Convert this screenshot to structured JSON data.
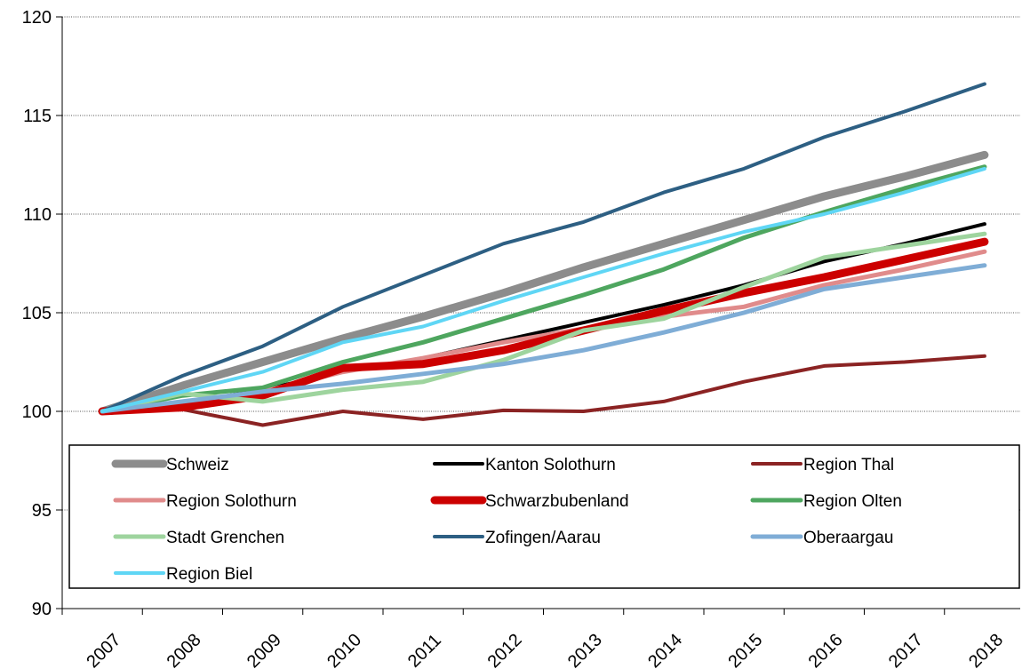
{
  "chart_data": {
    "type": "line",
    "title": "",
    "xlabel": "",
    "ylabel": "",
    "x": [
      "2007",
      "2008",
      "2009",
      "2010",
      "2011",
      "2012",
      "2013",
      "2014",
      "2015",
      "2016",
      "2017",
      "2018"
    ],
    "ylim": [
      90,
      120
    ],
    "yticks": [
      90,
      95,
      100,
      105,
      110,
      115,
      120
    ],
    "grid": "horizontal",
    "legend_position": "bottom-inside",
    "series": [
      {
        "name": "Schweiz",
        "color": "#8c8c8c",
        "width": 9,
        "values": [
          100,
          101.3,
          102.5,
          103.7,
          104.8,
          106,
          107.3,
          108.5,
          109.7,
          110.9,
          111.9,
          113
        ]
      },
      {
        "name": "Kanton Solothurn",
        "color": "#000000",
        "width": 4,
        "values": [
          100,
          100.4,
          101.1,
          102,
          102.7,
          103.6,
          104.5,
          105.4,
          106.4,
          107.6,
          108.5,
          109.5
        ]
      },
      {
        "name": "Region Thal",
        "color": "#8b2323",
        "width": 4,
        "values": [
          100,
          100.1,
          99.3,
          100,
          99.6,
          100.05,
          100,
          100.5,
          101.5,
          102.3,
          102.5,
          102.8
        ]
      },
      {
        "name": "Region Solothurn",
        "color": "#e08b8b",
        "width": 5,
        "values": [
          100,
          100.4,
          101,
          102,
          102.7,
          103.5,
          104.2,
          104.8,
          105.3,
          106.4,
          107.2,
          108.1
        ]
      },
      {
        "name": "Schwarzbubenland",
        "color": "#cc0000",
        "width": 9,
        "values": [
          100,
          100.2,
          100.8,
          102.2,
          102.4,
          103.1,
          104.1,
          105.1,
          106,
          106.8,
          107.7,
          108.6
        ]
      },
      {
        "name": "Region Olten",
        "color": "#4ea65f",
        "width": 5,
        "values": [
          100,
          100.8,
          101.2,
          102.5,
          103.5,
          104.7,
          105.9,
          107.2,
          108.8,
          110.1,
          111.3,
          112.4
        ]
      },
      {
        "name": "Stadt Grenchen",
        "color": "#9ed49e",
        "width": 5,
        "values": [
          100,
          100.9,
          100.5,
          101.1,
          101.5,
          102.6,
          104.1,
          104.7,
          106.3,
          107.8,
          108.4,
          109
        ]
      },
      {
        "name": "Zofingen/Aarau",
        "color": "#2d5f83",
        "width": 4,
        "values": [
          100,
          101.8,
          103.3,
          105.3,
          106.9,
          108.5,
          109.6,
          111.1,
          112.3,
          113.9,
          115.2,
          116.6
        ]
      },
      {
        "name": "Oberaargau",
        "color": "#7fadd6",
        "width": 5,
        "values": [
          100,
          100.5,
          101,
          101.4,
          101.9,
          102.4,
          103.1,
          104,
          105,
          106.2,
          106.8,
          107.4
        ]
      },
      {
        "name": "Region Biel",
        "color": "#5fd6f5",
        "width": 4,
        "values": [
          100,
          101,
          102,
          103.5,
          104.3,
          105.6,
          106.8,
          108,
          109.1,
          110,
          111.1,
          112.3
        ]
      }
    ]
  }
}
